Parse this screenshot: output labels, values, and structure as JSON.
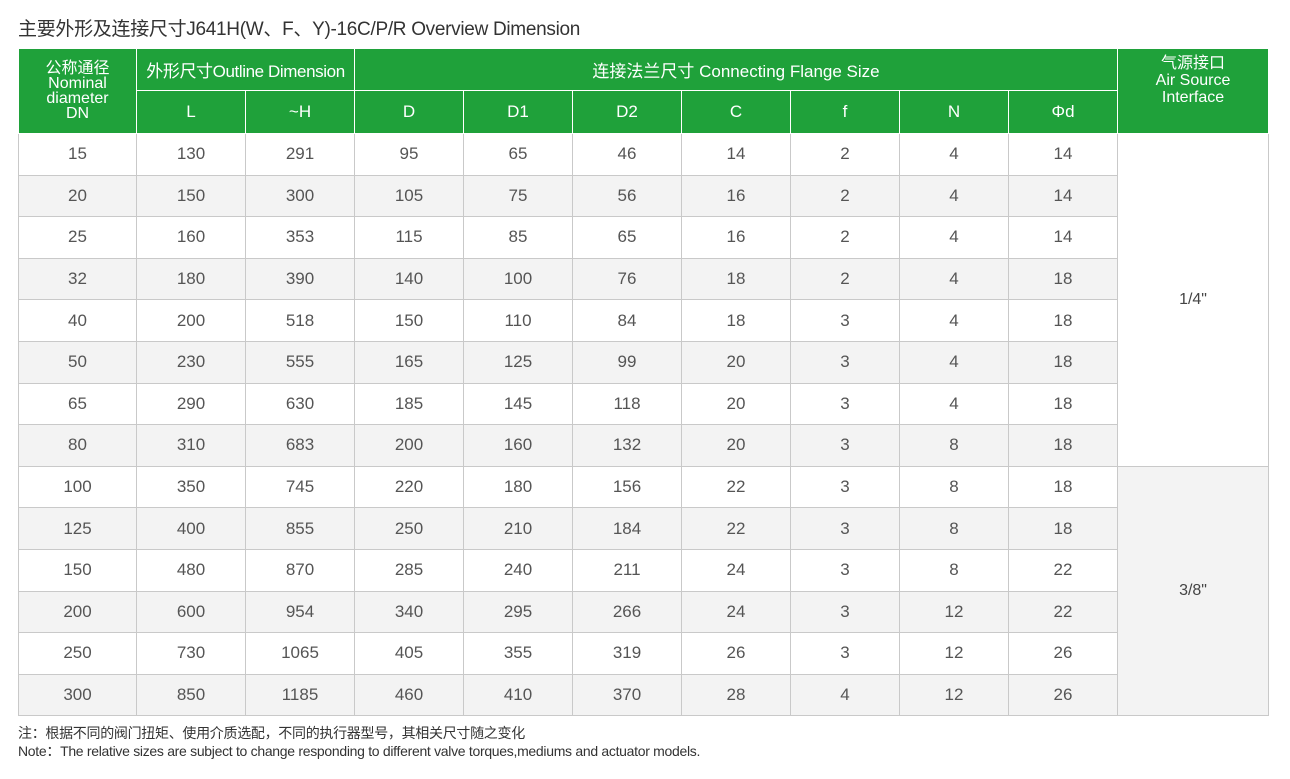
{
  "title": "主要外形及连接尺寸J641H(W、F、Y)-16C/P/R Overview Dimension",
  "header": {
    "dn": [
      "公称通径",
      "Nominal",
      "diameter",
      "DN"
    ],
    "outline_group": "外形尺寸Outline Dimension",
    "flange_group": "连接法兰尺寸 Connecting Flange Size",
    "air": [
      "气源接口",
      "Air Source",
      "Interface"
    ],
    "columns": [
      "L",
      "~H",
      "D",
      "D1",
      "D2",
      "C",
      "f",
      "N",
      "Φd"
    ]
  },
  "rows": [
    [
      "15",
      "130",
      "291",
      "95",
      "65",
      "46",
      "14",
      "2",
      "4",
      "14"
    ],
    [
      "20",
      "150",
      "300",
      "105",
      "75",
      "56",
      "16",
      "2",
      "4",
      "14"
    ],
    [
      "25",
      "160",
      "353",
      "115",
      "85",
      "65",
      "16",
      "2",
      "4",
      "14"
    ],
    [
      "32",
      "180",
      "390",
      "140",
      "100",
      "76",
      "18",
      "2",
      "4",
      "18"
    ],
    [
      "40",
      "200",
      "518",
      "150",
      "110",
      "84",
      "18",
      "3",
      "4",
      "18"
    ],
    [
      "50",
      "230",
      "555",
      "165",
      "125",
      "99",
      "20",
      "3",
      "4",
      "18"
    ],
    [
      "65",
      "290",
      "630",
      "185",
      "145",
      "118",
      "20",
      "3",
      "4",
      "18"
    ],
    [
      "80",
      "310",
      "683",
      "200",
      "160",
      "132",
      "20",
      "3",
      "8",
      "18"
    ],
    [
      "100",
      "350",
      "745",
      "220",
      "180",
      "156",
      "22",
      "3",
      "8",
      "18"
    ],
    [
      "125",
      "400",
      "855",
      "250",
      "210",
      "184",
      "22",
      "3",
      "8",
      "18"
    ],
    [
      "150",
      "480",
      "870",
      "285",
      "240",
      "211",
      "24",
      "3",
      "8",
      "22"
    ],
    [
      "200",
      "600",
      "954",
      "340",
      "295",
      "266",
      "24",
      "3",
      "12",
      "22"
    ],
    [
      "250",
      "730",
      "1065",
      "405",
      "355",
      "319",
      "26",
      "3",
      "12",
      "26"
    ],
    [
      "300",
      "850",
      "1185",
      "460",
      "410",
      "370",
      "28",
      "4",
      "12",
      "26"
    ]
  ],
  "air_values": [
    "1/4\"",
    "3/8\""
  ],
  "notes": [
    "注：根据不同的阀门扭矩、使用介质选配，不同的执行器型号，其相关尺寸随之变化",
    "Note：The relative sizes are subject to change responding to different valve torques,mediums and actuator models."
  ]
}
